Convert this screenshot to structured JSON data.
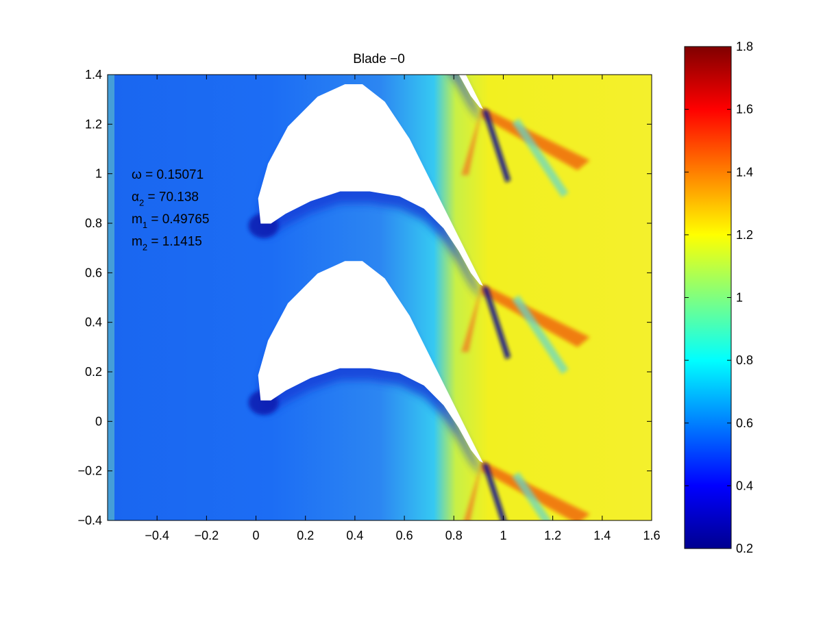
{
  "chart_data": {
    "type": "contour",
    "title": "Blade −0",
    "xlim": [
      -0.6,
      1.6
    ],
    "ylim": [
      -0.4,
      1.4
    ],
    "xticks": [
      -0.4,
      -0.2,
      0,
      0.2,
      0.4,
      0.6,
      0.8,
      1,
      1.2,
      1.4,
      1.6
    ],
    "xtick_labels": [
      "−0.4",
      "−0.2",
      "0",
      "0.2",
      "0.4",
      "0.6",
      "0.8",
      "1",
      "1.2",
      "1.4",
      "1.6"
    ],
    "yticks": [
      -0.4,
      -0.2,
      0,
      0.2,
      0.4,
      0.6,
      0.8,
      1,
      1.2,
      1.4
    ],
    "ytick_labels": [
      "−0.4",
      "−0.2",
      "0",
      "0.2",
      "0.4",
      "0.6",
      "0.8",
      "1",
      "1.2",
      "1.4"
    ],
    "colorbar": {
      "range": [
        0.2,
        1.8
      ],
      "ticks": [
        0.2,
        0.4,
        0.6,
        0.8,
        1,
        1.2,
        1.4,
        1.6,
        1.8
      ],
      "tick_labels": [
        "0.2",
        "0.4",
        "0.6",
        "0.8",
        "1",
        "1.2",
        "1.4",
        "1.6",
        "1.8"
      ],
      "colormap": "jet"
    },
    "blade_pitch": 0.714,
    "annotations": [
      {
        "symbol": "ω",
        "sub": "",
        "value": "= 0.15071"
      },
      {
        "symbol": "α",
        "sub": "2",
        "value": "= 70.138"
      },
      {
        "symbol": "m",
        "sub": "1",
        "value": "= 0.49765"
      },
      {
        "symbol": "m",
        "sub": "2",
        "value": "= 1.1415"
      }
    ]
  }
}
